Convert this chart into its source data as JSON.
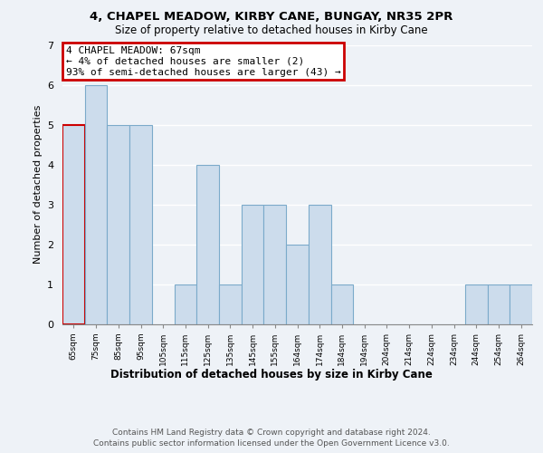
{
  "title": "4, CHAPEL MEADOW, KIRBY CANE, BUNGAY, NR35 2PR",
  "subtitle": "Size of property relative to detached houses in Kirby Cane",
  "xlabel": "Distribution of detached houses by size in Kirby Cane",
  "ylabel": "Number of detached properties",
  "categories": [
    "65sqm",
    "75sqm",
    "85sqm",
    "95sqm",
    "105sqm",
    "115sqm",
    "125sqm",
    "135sqm",
    "145sqm",
    "155sqm",
    "164sqm",
    "174sqm",
    "184sqm",
    "194sqm",
    "204sqm",
    "214sqm",
    "224sqm",
    "234sqm",
    "244sqm",
    "254sqm",
    "264sqm"
  ],
  "values": [
    5,
    6,
    5,
    5,
    0,
    1,
    4,
    1,
    3,
    3,
    2,
    3,
    1,
    0,
    0,
    0,
    0,
    0,
    1,
    1,
    1
  ],
  "bar_color": "#ccdcec",
  "bar_edge_color": "#7baaca",
  "highlight_edge_color": "#cc0000",
  "annotation_text_line1": "4 CHAPEL MEADOW: 67sqm",
  "annotation_text_line2": "← 4% of detached houses are smaller (2)",
  "annotation_text_line3": "93% of semi-detached houses are larger (43) →",
  "ylim": [
    0,
    7
  ],
  "yticks": [
    0,
    1,
    2,
    3,
    4,
    5,
    6,
    7
  ],
  "footnote1": "Contains HM Land Registry data © Crown copyright and database right 2024.",
  "footnote2": "Contains public sector information licensed under the Open Government Licence v3.0.",
  "bg_color": "#eef2f7"
}
